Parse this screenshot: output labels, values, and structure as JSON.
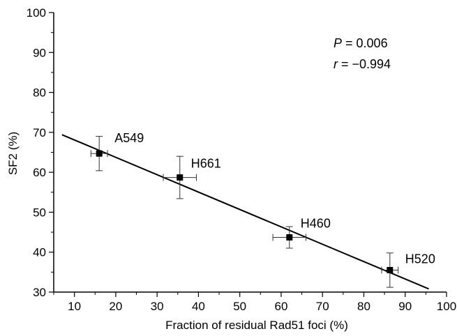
{
  "chart_data": {
    "type": "scatter",
    "xlabel": "Fraction of residual Rad51 foci (%)",
    "ylabel": "SF2 (%)",
    "xlim": [
      5,
      100
    ],
    "ylim": [
      30,
      100
    ],
    "x_ticks": [
      10,
      20,
      30,
      40,
      50,
      60,
      70,
      80,
      90,
      100
    ],
    "y_ticks": [
      30,
      40,
      50,
      60,
      70,
      80,
      90,
      100
    ],
    "grid": false,
    "points": [
      {
        "label": "A549",
        "x": 16,
        "y": 64.7,
        "x_err": 2,
        "y_err_plus": 4.3,
        "y_err_minus": 4.3
      },
      {
        "label": "H661",
        "x": 35.5,
        "y": 58.7,
        "x_err": 4,
        "y_err_plus": 5.3,
        "y_err_minus": 5.3
      },
      {
        "label": "H460",
        "x": 62,
        "y": 43.7,
        "x_err": 4,
        "y_err_plus": 2.7,
        "y_err_minus": 2.7
      },
      {
        "label": "H520",
        "x": 86.3,
        "y": 35.5,
        "x_err": 2,
        "y_err_plus": 4.3,
        "y_err_minus": 4.3
      }
    ],
    "fit_line": {
      "x": [
        7,
        95.7
      ],
      "y": [
        69.4,
        30.8
      ]
    },
    "annotations": {
      "p_label": "P",
      "p_value": " = 0.006",
      "r_label": "r",
      "r_value": " = −0.994"
    }
  }
}
